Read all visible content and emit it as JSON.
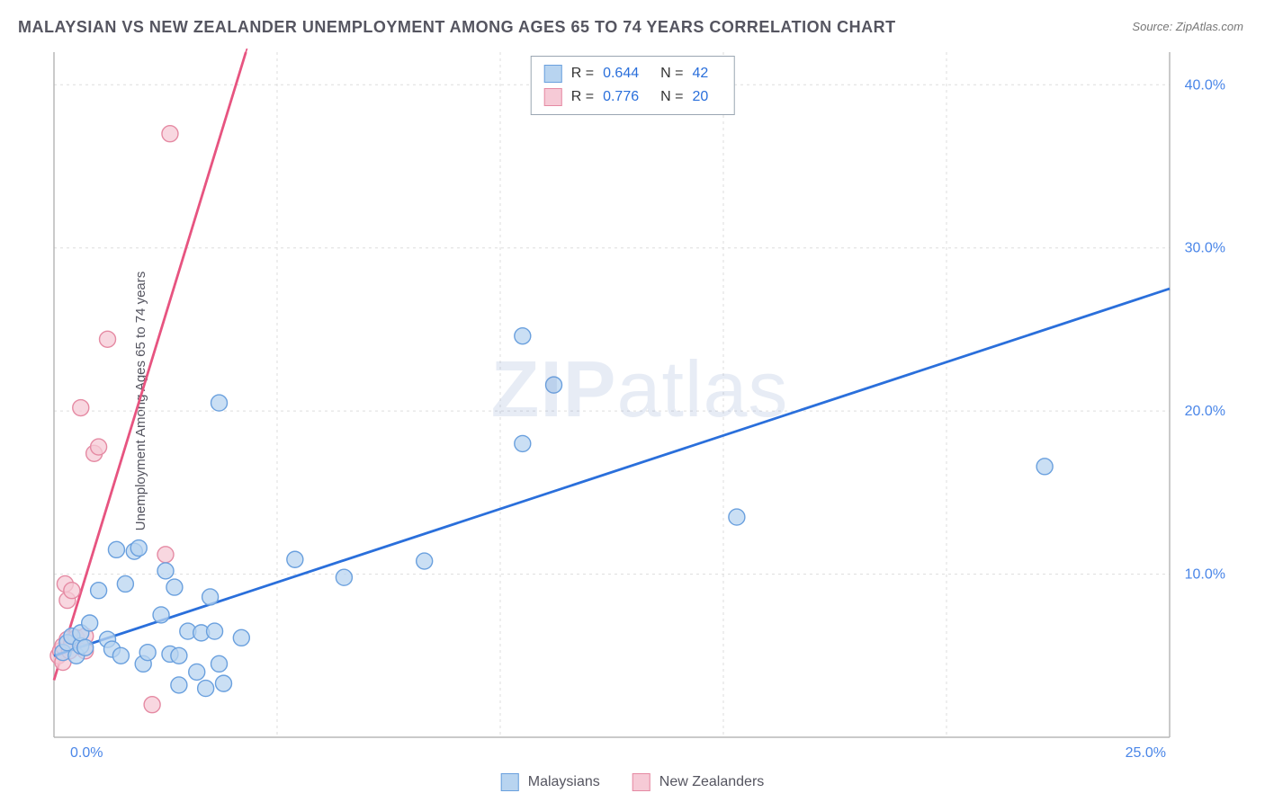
{
  "title": "MALAYSIAN VS NEW ZEALANDER UNEMPLOYMENT AMONG AGES 65 TO 74 YEARS CORRELATION CHART",
  "source_label": "Source:",
  "source_value": "ZipAtlas.com",
  "ylabel": "Unemployment Among Ages 65 to 74 years",
  "watermark_zip": "ZIP",
  "watermark_atlas": "atlas",
  "chart": {
    "type": "scatter",
    "xlim": [
      0,
      25
    ],
    "ylim": [
      0,
      42
    ],
    "xticks": [
      {
        "v": 0,
        "label": "0.0%"
      },
      {
        "v": 25,
        "label": "25.0%"
      }
    ],
    "yticks": [
      {
        "v": 10,
        "label": "10.0%"
      },
      {
        "v": 20,
        "label": "20.0%"
      },
      {
        "v": 30,
        "label": "30.0%"
      },
      {
        "v": 40,
        "label": "40.0%"
      }
    ],
    "grid_color": "#dddddd",
    "axis_color": "#b8b8b8",
    "tick_label_color": "#4a86e8",
    "background_color": "#ffffff",
    "marker_radius": 9,
    "marker_stroke_width": 1.4,
    "trend_line_width": 2.8,
    "series": [
      {
        "id": "malaysians",
        "name": "Malaysians",
        "fill": "#b8d4f0",
        "stroke": "#6aa0de",
        "line_color": "#2a6fdb",
        "r_value": "0.644",
        "n_value": "42",
        "trend": {
          "x1": 0,
          "y1": 5.0,
          "x2": 25,
          "y2": 27.5
        },
        "points": [
          [
            0.2,
            5.2
          ],
          [
            0.3,
            5.8
          ],
          [
            0.4,
            6.2
          ],
          [
            0.5,
            5.0
          ],
          [
            0.6,
            5.6
          ],
          [
            0.6,
            6.4
          ],
          [
            0.7,
            5.5
          ],
          [
            0.8,
            7.0
          ],
          [
            1.0,
            9.0
          ],
          [
            1.2,
            6.0
          ],
          [
            1.3,
            5.4
          ],
          [
            1.4,
            11.5
          ],
          [
            1.5,
            5.0
          ],
          [
            1.6,
            9.4
          ],
          [
            1.8,
            11.4
          ],
          [
            1.9,
            11.6
          ],
          [
            2.0,
            4.5
          ],
          [
            2.1,
            5.2
          ],
          [
            2.4,
            7.5
          ],
          [
            2.5,
            10.2
          ],
          [
            2.6,
            5.1
          ],
          [
            2.7,
            9.2
          ],
          [
            2.8,
            5.0
          ],
          [
            2.8,
            3.2
          ],
          [
            3.0,
            6.5
          ],
          [
            3.2,
            4.0
          ],
          [
            3.3,
            6.4
          ],
          [
            3.4,
            3.0
          ],
          [
            3.5,
            8.6
          ],
          [
            3.6,
            6.5
          ],
          [
            3.7,
            4.5
          ],
          [
            3.7,
            20.5
          ],
          [
            3.8,
            3.3
          ],
          [
            4.2,
            6.1
          ],
          [
            5.4,
            10.9
          ],
          [
            6.5,
            9.8
          ],
          [
            8.3,
            10.8
          ],
          [
            10.5,
            18.0
          ],
          [
            10.5,
            24.6
          ],
          [
            11.2,
            21.6
          ],
          [
            15.3,
            13.5
          ],
          [
            22.2,
            16.6
          ]
        ]
      },
      {
        "id": "new_zealanders",
        "name": "New Zealanders",
        "fill": "#f6cad6",
        "stroke": "#e58aa3",
        "line_color": "#e75480",
        "r_value": "0.776",
        "n_value": "20",
        "trend": {
          "x1": 0,
          "y1": 3.5,
          "x2": 4.3,
          "y2": 42
        },
        "points": [
          [
            0.1,
            5.0
          ],
          [
            0.15,
            5.3
          ],
          [
            0.2,
            5.6
          ],
          [
            0.2,
            4.6
          ],
          [
            0.25,
            9.4
          ],
          [
            0.3,
            6.0
          ],
          [
            0.3,
            8.4
          ],
          [
            0.35,
            5.3
          ],
          [
            0.4,
            5.8
          ],
          [
            0.4,
            9.0
          ],
          [
            0.5,
            6.1
          ],
          [
            0.6,
            20.2
          ],
          [
            0.7,
            5.3
          ],
          [
            0.9,
            17.4
          ],
          [
            1.0,
            17.8
          ],
          [
            1.2,
            24.4
          ],
          [
            2.2,
            2.0
          ],
          [
            2.5,
            11.2
          ],
          [
            2.6,
            37.0
          ],
          [
            0.7,
            6.2
          ]
        ]
      }
    ]
  },
  "stat_legend": {
    "r_label": "R =",
    "n_label": "N ="
  }
}
